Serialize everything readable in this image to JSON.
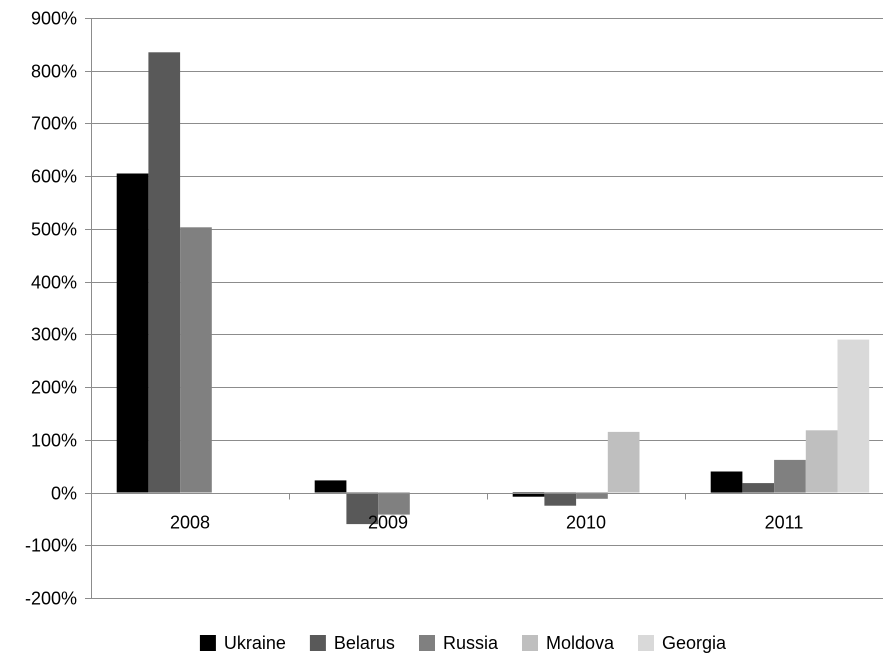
{
  "chart_data": {
    "type": "bar",
    "title": "",
    "xlabel": "",
    "ylabel": "",
    "categories": [
      "2008",
      "2009",
      "2010",
      "2011"
    ],
    "series": [
      {
        "name": "Ukraine",
        "color": "#000000",
        "values": [
          605,
          23,
          -8,
          40
        ]
      },
      {
        "name": "Belarus",
        "color": "#595959",
        "values": [
          835,
          -60,
          -25,
          18
        ]
      },
      {
        "name": "Russia",
        "color": "#808080",
        "values": [
          503,
          -42,
          -12,
          62
        ]
      },
      {
        "name": "Moldova",
        "color": "#bfbfbf",
        "values": [
          0,
          0,
          115,
          118
        ]
      },
      {
        "name": "Georgia",
        "color": "#d9d9d9",
        "values": [
          0,
          0,
          0,
          290
        ]
      }
    ],
    "ylim": [
      -200,
      900
    ],
    "yticks": [
      -200,
      -100,
      0,
      100,
      200,
      300,
      400,
      500,
      600,
      700,
      800,
      900
    ],
    "ytick_labels": [
      "-200%",
      "-100%",
      "0%",
      "100%",
      "200%",
      "300%",
      "400%",
      "500%",
      "600%",
      "700%",
      "800%",
      "900%"
    ],
    "grid": true,
    "legend": "bottom"
  }
}
